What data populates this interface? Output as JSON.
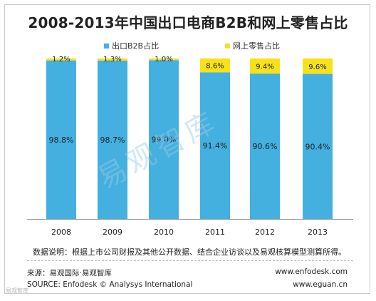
{
  "title": "2008-2013年中国出口电商B2B和网上零售占比",
  "legend": {
    "b2b_label": "出口B2B占比",
    "retail_label": "网上零售占比"
  },
  "colors": {
    "b2b": "#43b0e0",
    "retail": "#f7e11a"
  },
  "watermark": "易观智库",
  "note": "数据说明：根据上市公司财报及其他公开数据、结合企业访谈以及易观核算模型测算所得。",
  "source_cn": "来源：易观国际·易观智库",
  "source_en": "SOURCE: Enfodesk © Analysys International",
  "site_1": "www.enfodesk.com",
  "site_2": "www.eguan.cn",
  "badge": "易观智库",
  "chart_data": {
    "type": "bar",
    "stacked": true,
    "title": "2008-2013年中国出口电商B2B和网上零售占比",
    "categories": [
      "2008",
      "2009",
      "2010",
      "2011",
      "2012",
      "2013"
    ],
    "series": [
      {
        "name": "出口B2B占比",
        "values": [
          98.8,
          98.7,
          99.0,
          91.4,
          90.6,
          90.4
        ],
        "labels": [
          "98.8%",
          "98.7%",
          "99.0%",
          "91.4%",
          "90.6%",
          "90.4%"
        ],
        "color": "#43b0e0"
      },
      {
        "name": "网上零售占比",
        "values": [
          1.2,
          1.3,
          1.0,
          8.6,
          9.4,
          9.6
        ],
        "labels": [
          "1.2%",
          "1.3%",
          "1.0%",
          "8.6%",
          "9.4%",
          "9.6%"
        ],
        "color": "#f7e11a"
      }
    ],
    "ylim": [
      0,
      100
    ],
    "legend": "top",
    "grid": false
  }
}
